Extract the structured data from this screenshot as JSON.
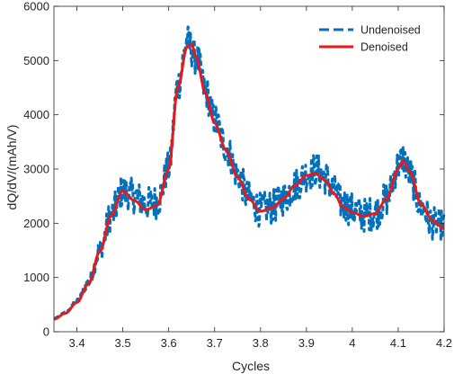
{
  "chart_data": {
    "type": "line",
    "title": "",
    "xlabel": "Cycles",
    "ylabel": "dQ/dV/(mAh/V)",
    "xlim": [
      3.35,
      4.2
    ],
    "ylim": [
      0,
      6000
    ],
    "xticks": [
      3.4,
      3.5,
      3.6,
      3.7,
      3.8,
      3.9,
      4.0,
      4.1,
      4.2
    ],
    "xtick_labels": [
      "3.4",
      "3.5",
      "3.6",
      "3.7",
      "3.8",
      "3.9",
      "4",
      "4.1",
      "4.2"
    ],
    "yticks": [
      0,
      1000,
      2000,
      3000,
      4000,
      5000,
      6000
    ],
    "ytick_labels": [
      "0",
      "1000",
      "2000",
      "3000",
      "4000",
      "5000",
      "6000"
    ],
    "grid": false,
    "legend_position": "top-right",
    "series": [
      {
        "name": "Undenoised",
        "color": "#0072BD",
        "style": "dashed",
        "note_noise_amplitude": 320,
        "x": [
          3.35,
          3.375,
          3.4,
          3.425,
          3.45,
          3.475,
          3.5,
          3.525,
          3.55,
          3.575,
          3.6,
          3.62,
          3.64,
          3.66,
          3.68,
          3.7,
          3.725,
          3.75,
          3.775,
          3.8,
          3.825,
          3.85,
          3.875,
          3.9,
          3.92,
          3.94,
          3.96,
          3.98,
          4.0,
          4.025,
          4.05,
          4.075,
          4.1,
          4.11,
          4.125,
          4.15,
          4.175,
          4.2
        ],
        "y": [
          250,
          360,
          560,
          900,
          1500,
          2150,
          2600,
          2500,
          2350,
          2400,
          3000,
          4550,
          5350,
          5050,
          4450,
          3900,
          3400,
          2900,
          2450,
          2250,
          2300,
          2450,
          2700,
          2900,
          2980,
          2850,
          2600,
          2350,
          2250,
          2150,
          2200,
          2450,
          3050,
          3200,
          2900,
          2300,
          2000,
          1950
        ]
      },
      {
        "name": "Denoised",
        "color": "#E41A1C",
        "style": "solid",
        "x": [
          3.35,
          3.375,
          3.4,
          3.425,
          3.45,
          3.475,
          3.5,
          3.525,
          3.55,
          3.575,
          3.6,
          3.62,
          3.64,
          3.65,
          3.66,
          3.68,
          3.7,
          3.725,
          3.75,
          3.775,
          3.8,
          3.825,
          3.85,
          3.875,
          3.9,
          3.92,
          3.94,
          3.96,
          3.98,
          4.0,
          4.025,
          4.05,
          4.075,
          4.1,
          4.11,
          4.125,
          4.15,
          4.175,
          4.2
        ],
        "y": [
          230,
          340,
          540,
          880,
          1480,
          2150,
          2600,
          2420,
          2250,
          2330,
          3000,
          4500,
          5250,
          5300,
          5050,
          4400,
          3850,
          3350,
          2850,
          2450,
          2220,
          2280,
          2450,
          2700,
          2880,
          2920,
          2800,
          2550,
          2300,
          2200,
          2130,
          2180,
          2450,
          3000,
          3160,
          2950,
          2350,
          2050,
          1900
        ]
      }
    ]
  }
}
